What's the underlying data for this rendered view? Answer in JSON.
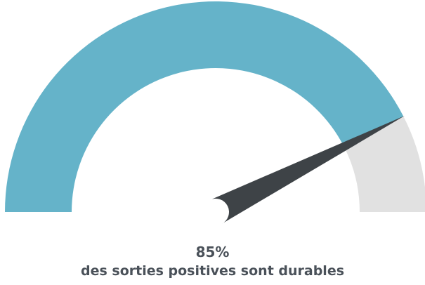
{
  "chart_data": {
    "type": "gauge",
    "value": 85,
    "max": 100,
    "value_label": "85%",
    "caption": "des sorties positives sont durables"
  },
  "colors": {
    "filled": "#65b3c9",
    "remaining": "#e1e1e1",
    "needle": "#3e4347",
    "text": "#4a5159"
  }
}
